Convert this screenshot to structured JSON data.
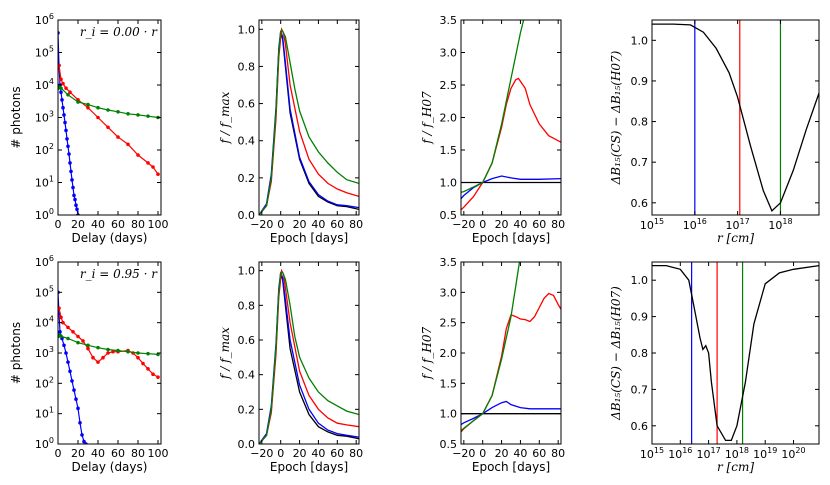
{
  "chart_data": [
    {
      "type": "line",
      "id": "a1",
      "ylabel": "# photons",
      "xlabel": "Delay (days)",
      "yscale": "log",
      "xlim": [
        0,
        103
      ],
      "ylim_exp": [
        0,
        6
      ],
      "xticks": [
        "0",
        "20",
        "40",
        "60",
        "80",
        "100"
      ],
      "yticks_base": "10",
      "yticks_exp": [
        "0",
        "1",
        "2",
        "3",
        "4",
        "5",
        "6"
      ],
      "annotation": "r_i = 0.00 · r",
      "series": [
        {
          "name": "blue",
          "color": "#0000ff",
          "markers": true,
          "x": [
            0,
            1,
            2,
            3,
            4,
            5,
            6,
            7,
            8,
            9,
            10,
            11,
            12,
            13,
            14,
            15,
            16,
            17,
            18,
            19,
            20
          ],
          "y": [
            400000,
            40000,
            10000,
            6000,
            3500,
            2000,
            1200,
            700,
            400,
            220,
            130,
            75,
            40,
            22,
            12,
            7,
            4,
            3,
            2,
            1.5,
            1
          ]
        },
        {
          "name": "red",
          "color": "#ff0000",
          "markers": true,
          "x": [
            1,
            3,
            5,
            8,
            12,
            20,
            30,
            40,
            50,
            60,
            70,
            80,
            90,
            95,
            100
          ],
          "y": [
            40000,
            15000,
            11000,
            8000,
            6000,
            3500,
            2000,
            1000,
            500,
            250,
            150,
            70,
            40,
            30,
            18
          ]
        },
        {
          "name": "green",
          "color": "#008000",
          "markers": true,
          "x": [
            0,
            1,
            3,
            10,
            20,
            30,
            40,
            50,
            60,
            70,
            80,
            90,
            100
          ],
          "y": [
            8000,
            9000,
            8000,
            5000,
            3000,
            2500,
            2000,
            1700,
            1500,
            1300,
            1200,
            1100,
            1000
          ]
        }
      ]
    },
    {
      "type": "line",
      "id": "b1",
      "ylabel": "f / f_max",
      "xlabel": "Epoch [days]",
      "xlim": [
        -23,
        83
      ],
      "ylim": [
        0,
        1.05
      ],
      "xticks": [
        "−20",
        "0",
        "20",
        "40",
        "60",
        "80"
      ],
      "yticks": [
        "0.0",
        "0.2",
        "0.4",
        "0.6",
        "0.8",
        "1.0"
      ],
      "series": [
        {
          "name": "black",
          "color": "#000000",
          "x": [
            -23,
            -15,
            -10,
            -5,
            -2,
            0,
            2,
            5,
            10,
            20,
            30,
            40,
            50,
            60,
            70,
            83
          ],
          "y": [
            0,
            0.05,
            0.2,
            0.55,
            0.88,
            0.98,
            0.95,
            0.8,
            0.55,
            0.3,
            0.17,
            0.1,
            0.07,
            0.05,
            0.045,
            0.03
          ]
        },
        {
          "name": "blue",
          "color": "#0000ff",
          "x": [
            -23,
            -15,
            -10,
            -5,
            -2,
            0,
            2,
            5,
            10,
            20,
            30,
            40,
            50,
            60,
            70,
            83
          ],
          "y": [
            0,
            0.06,
            0.22,
            0.58,
            0.9,
            0.99,
            0.96,
            0.82,
            0.57,
            0.31,
            0.18,
            0.11,
            0.075,
            0.055,
            0.05,
            0.04
          ]
        },
        {
          "name": "red",
          "color": "#ff0000",
          "x": [
            -23,
            -15,
            -10,
            -5,
            -2,
            1,
            3,
            5,
            10,
            20,
            30,
            40,
            50,
            60,
            70,
            83
          ],
          "y": [
            0,
            0.05,
            0.18,
            0.52,
            0.85,
            1.0,
            0.98,
            0.92,
            0.7,
            0.45,
            0.3,
            0.22,
            0.17,
            0.14,
            0.12,
            0.1
          ]
        },
        {
          "name": "green",
          "color": "#008000",
          "x": [
            -23,
            -15,
            -10,
            -5,
            -2,
            0,
            2,
            5,
            10,
            15,
            20,
            30,
            40,
            50,
            60,
            70,
            83
          ],
          "y": [
            0,
            0.05,
            0.2,
            0.56,
            0.88,
            0.99,
            0.99,
            0.96,
            0.82,
            0.68,
            0.56,
            0.42,
            0.34,
            0.28,
            0.23,
            0.19,
            0.17
          ]
        }
      ]
    },
    {
      "type": "line",
      "id": "c1",
      "ylabel": "f / f_H07",
      "xlabel": "Epoch [days]",
      "xlim": [
        -23,
        83
      ],
      "ylim": [
        0.5,
        3.5
      ],
      "xticks": [
        "−20",
        "0",
        "20",
        "40",
        "60",
        "80"
      ],
      "yticks": [
        "0.5",
        "1.0",
        "1.5",
        "2.0",
        "2.5",
        "3.0",
        "3.5"
      ],
      "series": [
        {
          "name": "black",
          "color": "#000000",
          "x": [
            -23,
            83
          ],
          "y": [
            1.0,
            1.0
          ]
        },
        {
          "name": "blue",
          "color": "#0000ff",
          "x": [
            -23,
            -20,
            -15,
            -10,
            0,
            10,
            20,
            30,
            40,
            60,
            83
          ],
          "y": [
            0.75,
            0.8,
            0.86,
            0.92,
            1.0,
            1.06,
            1.1,
            1.07,
            1.05,
            1.05,
            1.06
          ]
        },
        {
          "name": "red",
          "color": "#ff0000",
          "x": [
            -23,
            -20,
            -10,
            0,
            10,
            20,
            25,
            30,
            35,
            38,
            45,
            50,
            60,
            70,
            83
          ],
          "y": [
            0.58,
            0.62,
            0.78,
            1.0,
            1.3,
            1.85,
            2.2,
            2.45,
            2.58,
            2.6,
            2.45,
            2.2,
            1.9,
            1.72,
            1.62
          ]
        },
        {
          "name": "green",
          "color": "#008000",
          "x": [
            -23,
            -20,
            -10,
            0,
            10,
            20,
            30,
            40,
            45
          ],
          "y": [
            0.85,
            0.86,
            0.93,
            1.0,
            1.3,
            1.9,
            2.6,
            3.3,
            3.6
          ]
        }
      ]
    },
    {
      "type": "line",
      "id": "d1",
      "ylabel": "ΔB₁₅(CS) − ΔB₁₅(H07)",
      "xlabel": "r [cm]",
      "xscale": "log",
      "xlim_exp": [
        15,
        18.9
      ],
      "ylim": [
        0.57,
        1.05
      ],
      "xticks_base": "10",
      "xticks_exp": [
        "15",
        "16",
        "17",
        "18"
      ],
      "yticks": [
        "0.6",
        "0.7",
        "0.8",
        "0.9",
        "1.0"
      ],
      "vlines": [
        {
          "color": "#0000ff",
          "x_exp": 16.0
        },
        {
          "color": "#ff0000",
          "x_exp": 17.05
        },
        {
          "color": "#008000",
          "x_exp": 18.0
        }
      ],
      "series": [
        {
          "name": "black",
          "color": "#000000",
          "x_exp": [
            15,
            15.5,
            15.9,
            16.2,
            16.5,
            16.8,
            17.0,
            17.3,
            17.6,
            17.8,
            18.0,
            18.3,
            18.6,
            18.9
          ],
          "y": [
            1.04,
            1.04,
            1.038,
            1.02,
            0.98,
            0.92,
            0.86,
            0.74,
            0.63,
            0.58,
            0.6,
            0.68,
            0.78,
            0.87
          ]
        }
      ]
    },
    {
      "type": "line",
      "id": "a2",
      "ylabel": "# photons",
      "xlabel": "Delay (days)",
      "yscale": "log",
      "xlim": [
        0,
        103
      ],
      "ylim_exp": [
        0,
        6
      ],
      "xticks": [
        "0",
        "20",
        "40",
        "60",
        "80",
        "100"
      ],
      "yticks_base": "10",
      "yticks_exp": [
        "0",
        "1",
        "2",
        "3",
        "4",
        "5",
        "6"
      ],
      "annotation": "r_i = 0.95 · r",
      "series": [
        {
          "name": "blue",
          "color": "#0000ff",
          "markers": true,
          "x": [
            0,
            1,
            2,
            4,
            6,
            8,
            10,
            12,
            14,
            16,
            18,
            20,
            22,
            24,
            26,
            28
          ],
          "y": [
            100000,
            20000,
            5000,
            3000,
            1800,
            1000,
            500,
            250,
            120,
            60,
            30,
            15,
            5,
            2,
            1.2,
            1
          ]
        },
        {
          "name": "red",
          "color": "#ff0000",
          "markers": true,
          "x": [
            1,
            3,
            5,
            10,
            15,
            20,
            25,
            30,
            35,
            40,
            45,
            50,
            55,
            60,
            70,
            75,
            80,
            85,
            90,
            95,
            100
          ],
          "y": [
            30000,
            15000,
            10000,
            7000,
            5000,
            3500,
            2500,
            1400,
            700,
            500,
            700,
            1000,
            1100,
            1100,
            1200,
            1000,
            700,
            450,
            300,
            200,
            160
          ]
        },
        {
          "name": "green",
          "color": "#008000",
          "markers": true,
          "x": [
            0,
            1,
            3,
            10,
            20,
            30,
            40,
            50,
            60,
            70,
            80,
            90,
            100
          ],
          "y": [
            3500,
            4000,
            3600,
            3000,
            2200,
            1800,
            1500,
            1300,
            1200,
            1100,
            1000,
            950,
            900
          ]
        }
      ]
    },
    {
      "type": "line",
      "id": "b2",
      "ylabel": "f / f_max",
      "xlabel": "Epoch [days]",
      "xlim": [
        -23,
        83
      ],
      "ylim": [
        0,
        1.05
      ],
      "xticks": [
        "−20",
        "0",
        "20",
        "40",
        "60",
        "80"
      ],
      "yticks": [
        "0.0",
        "0.2",
        "0.4",
        "0.6",
        "0.8",
        "1.0"
      ],
      "series": [
        {
          "name": "black",
          "color": "#000000",
          "x": [
            -23,
            -15,
            -10,
            -5,
            -2,
            0,
            2,
            5,
            10,
            20,
            30,
            40,
            50,
            60,
            70,
            83
          ],
          "y": [
            0,
            0.05,
            0.2,
            0.55,
            0.88,
            0.98,
            0.95,
            0.8,
            0.55,
            0.3,
            0.17,
            0.1,
            0.07,
            0.05,
            0.045,
            0.03
          ]
        },
        {
          "name": "blue",
          "color": "#0000ff",
          "x": [
            -23,
            -15,
            -10,
            -5,
            -2,
            0,
            2,
            5,
            10,
            20,
            30,
            40,
            50,
            60,
            70,
            83
          ],
          "y": [
            0,
            0.06,
            0.22,
            0.58,
            0.9,
            0.99,
            0.96,
            0.83,
            0.6,
            0.34,
            0.2,
            0.12,
            0.08,
            0.06,
            0.05,
            0.04
          ]
        },
        {
          "name": "red",
          "color": "#ff0000",
          "x": [
            -23,
            -15,
            -10,
            -5,
            -2,
            1,
            3,
            5,
            10,
            20,
            30,
            40,
            50,
            60,
            70,
            83
          ],
          "y": [
            0,
            0.05,
            0.18,
            0.52,
            0.85,
            1.0,
            0.98,
            0.9,
            0.7,
            0.42,
            0.28,
            0.2,
            0.15,
            0.12,
            0.11,
            0.1
          ]
        },
        {
          "name": "green",
          "color": "#008000",
          "x": [
            -23,
            -15,
            -10,
            -5,
            -2,
            0,
            2,
            5,
            10,
            15,
            20,
            30,
            40,
            50,
            60,
            70,
            83
          ],
          "y": [
            0,
            0.05,
            0.2,
            0.56,
            0.88,
            0.99,
            0.99,
            0.95,
            0.8,
            0.62,
            0.5,
            0.38,
            0.3,
            0.25,
            0.22,
            0.19,
            0.17
          ]
        }
      ]
    },
    {
      "type": "line",
      "id": "c2",
      "ylabel": "f / f_H07",
      "xlabel": "Epoch [days]",
      "xlim": [
        -23,
        83
      ],
      "ylim": [
        0.5,
        3.5
      ],
      "xticks": [
        "−20",
        "0",
        "20",
        "40",
        "60",
        "80"
      ],
      "yticks": [
        "0.5",
        "1.0",
        "1.5",
        "2.0",
        "2.5",
        "3.0",
        "3.5"
      ],
      "series": [
        {
          "name": "black",
          "color": "#000000",
          "x": [
            -23,
            83
          ],
          "y": [
            1.0,
            1.0
          ]
        },
        {
          "name": "blue",
          "color": "#0000ff",
          "x": [
            -23,
            -20,
            -10,
            0,
            10,
            20,
            25,
            30,
            40,
            50,
            60,
            70,
            83
          ],
          "y": [
            0.82,
            0.85,
            0.92,
            1.0,
            1.1,
            1.18,
            1.2,
            1.15,
            1.1,
            1.08,
            1.08,
            1.08,
            1.08
          ]
        },
        {
          "name": "red",
          "color": "#ff0000",
          "x": [
            -23,
            -20,
            -10,
            0,
            10,
            20,
            25,
            30,
            35,
            40,
            45,
            50,
            55,
            60,
            65,
            70,
            75,
            80,
            83
          ],
          "y": [
            0.7,
            0.75,
            0.88,
            1.0,
            1.3,
            1.95,
            2.4,
            2.63,
            2.6,
            2.56,
            2.55,
            2.52,
            2.6,
            2.75,
            2.9,
            2.98,
            2.95,
            2.8,
            2.72
          ]
        },
        {
          "name": "green",
          "color": "#008000",
          "x": [
            -23,
            -20,
            -10,
            0,
            10,
            20,
            30,
            37,
            40
          ],
          "y": [
            0.72,
            0.76,
            0.88,
            1.0,
            1.3,
            1.9,
            2.6,
            3.3,
            3.6
          ]
        }
      ]
    },
    {
      "type": "line",
      "id": "d2",
      "ylabel": "ΔB₁₅(CS) − ΔB₁₅(H07)",
      "xlabel": "r [cm]",
      "xscale": "log",
      "xlim_exp": [
        15,
        20.9
      ],
      "ylim": [
        0.55,
        1.05
      ],
      "xticks_base": "10",
      "xticks_exp": [
        "15",
        "16",
        "17",
        "18",
        "19",
        "20"
      ],
      "yticks": [
        "0.6",
        "0.7",
        "0.8",
        "0.9",
        "1.0"
      ],
      "vlines": [
        {
          "color": "#0000ff",
          "x_exp": 16.4
        },
        {
          "color": "#ff0000",
          "x_exp": 17.3
        },
        {
          "color": "#008000",
          "x_exp": 18.2
        }
      ],
      "series": [
        {
          "name": "black",
          "color": "#000000",
          "x_exp": [
            15,
            15.5,
            16.0,
            16.3,
            16.5,
            16.7,
            16.8,
            16.9,
            17.0,
            17.1,
            17.3,
            17.6,
            17.8,
            18.0,
            18.3,
            18.6,
            19.0,
            19.5,
            20.0,
            20.9
          ],
          "y": [
            1.04,
            1.04,
            1.03,
            1.0,
            0.92,
            0.84,
            0.81,
            0.82,
            0.8,
            0.72,
            0.6,
            0.56,
            0.56,
            0.6,
            0.72,
            0.88,
            0.99,
            1.02,
            1.03,
            1.04
          ]
        }
      ]
    }
  ]
}
